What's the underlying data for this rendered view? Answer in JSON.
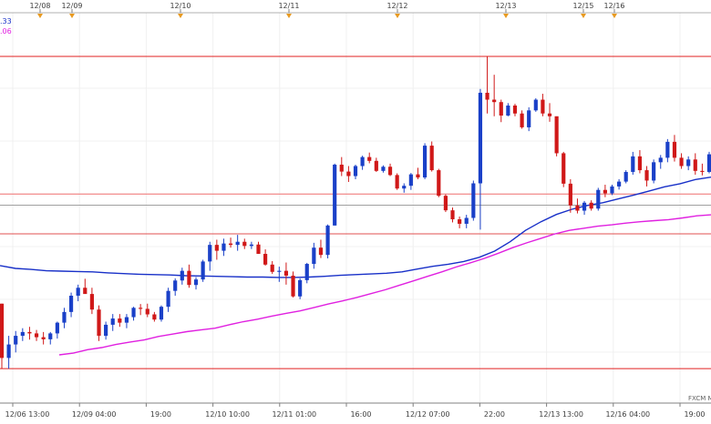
{
  "chart_data": {
    "type": "candlestick",
    "title": "",
    "xlabel": "",
    "ylabel": "",
    "ylim": [
      0,
      100
    ],
    "legend_entries": [
      ".33",
      ".06"
    ],
    "watermark": "FXCM M",
    "event_labels": [
      "12/08",
      "12/09",
      "12/10",
      "12/11",
      "12/12",
      "12/13",
      "12/15",
      "12/16"
    ],
    "x_tick_labels": [
      "12/06 13:00",
      "12/09 04:00",
      "19:00",
      "12/10 10:00",
      "12/11 01:00",
      "16:00",
      "12/12 07:00",
      "22:00",
      "12/13 13:00",
      "12/16 04:00",
      "19:00"
    ],
    "horizontal_levels": [
      {
        "value": 94.2,
        "color": "#e02020"
      },
      {
        "value": 54.4,
        "color": "#f07070"
      },
      {
        "value": 51.2,
        "color": "#a0a0a0"
      },
      {
        "value": 42.9,
        "color": "#e05050"
      },
      {
        "value": 3.9,
        "color": "#e02020"
      }
    ],
    "series": [
      {
        "type": "ohlc",
        "color_up": "#1a40c8",
        "color_down": "#d01818",
        "values": [
          [
            22.7,
            22.7,
            3.9,
            7.0
          ],
          [
            7.0,
            13.4,
            3.9,
            10.9
          ],
          [
            10.9,
            14.8,
            8.6,
            13.4
          ],
          [
            13.4,
            15.6,
            11.9,
            14.5
          ],
          [
            14.5,
            16.0,
            12.3,
            14.1
          ],
          [
            14.1,
            15.1,
            11.9,
            13.0
          ],
          [
            13.0,
            14.5,
            10.9,
            12.4
          ],
          [
            12.4,
            14.5,
            10.9,
            14.1
          ],
          [
            14.1,
            17.5,
            12.6,
            17.2
          ],
          [
            17.2,
            21.5,
            15.6,
            20.3
          ],
          [
            20.3,
            25.9,
            18.8,
            25.0
          ],
          [
            25.0,
            28.2,
            23.4,
            27.3
          ],
          [
            27.3,
            29.9,
            25.9,
            25.5
          ],
          [
            25.5,
            27.3,
            19.7,
            21.0
          ],
          [
            21.0,
            22.2,
            11.9,
            13.4
          ],
          [
            13.4,
            17.5,
            12.3,
            16.6
          ],
          [
            16.6,
            19.7,
            14.8,
            18.4
          ],
          [
            18.4,
            19.7,
            16.0,
            17.2
          ],
          [
            17.2,
            19.7,
            15.6,
            18.8
          ],
          [
            18.8,
            21.8,
            17.8,
            21.5
          ],
          [
            21.5,
            22.6,
            19.4,
            21.2
          ],
          [
            21.2,
            22.7,
            18.8,
            19.6
          ],
          [
            19.6,
            20.3,
            17.5,
            18.1
          ],
          [
            18.1,
            22.2,
            17.5,
            21.8
          ],
          [
            21.8,
            27.3,
            20.3,
            26.4
          ],
          [
            26.4,
            30.0,
            25.0,
            29.4
          ],
          [
            29.4,
            33.1,
            28.2,
            32.2
          ],
          [
            32.2,
            34.0,
            27.3,
            28.1
          ],
          [
            28.1,
            30.4,
            26.8,
            29.7
          ],
          [
            29.7,
            35.4,
            29.0,
            34.9
          ],
          [
            34.9,
            40.6,
            32.2,
            39.7
          ],
          [
            39.7,
            41.2,
            35.4,
            38.0
          ],
          [
            38.0,
            41.5,
            36.5,
            40.1
          ],
          [
            40.1,
            41.8,
            38.9,
            39.7
          ],
          [
            39.7,
            42.6,
            38.0,
            40.6
          ],
          [
            40.6,
            41.5,
            38.5,
            39.4
          ],
          [
            39.4,
            40.6,
            38.5,
            39.8
          ],
          [
            39.8,
            40.6,
            37.1,
            37.1
          ],
          [
            37.1,
            38.4,
            33.7,
            34.0
          ],
          [
            34.0,
            35.0,
            31.3,
            31.9
          ],
          [
            31.9,
            33.4,
            29.0,
            32.2
          ],
          [
            32.2,
            34.6,
            28.2,
            30.8
          ],
          [
            30.8,
            32.0,
            24.5,
            24.8
          ],
          [
            24.8,
            30.0,
            24.0,
            29.5
          ],
          [
            29.5,
            34.5,
            28.6,
            34.2
          ],
          [
            34.2,
            40.3,
            32.8,
            38.9
          ],
          [
            38.9,
            41.2,
            35.9,
            36.8
          ],
          [
            36.8,
            45.6,
            35.8,
            45.3
          ],
          [
            45.3,
            63.2,
            45.3,
            62.9
          ],
          [
            62.9,
            65.1,
            59.6,
            60.9
          ],
          [
            60.9,
            62.5,
            57.9,
            59.6
          ],
          [
            59.6,
            62.9,
            58.7,
            62.5
          ],
          [
            62.5,
            65.5,
            61.4,
            65.1
          ],
          [
            65.1,
            66.4,
            63.3,
            64.0
          ],
          [
            64.0,
            64.9,
            60.8,
            61.1
          ],
          [
            61.1,
            62.7,
            60.6,
            62.3
          ],
          [
            62.3,
            63.2,
            59.6,
            59.9
          ],
          [
            59.9,
            60.4,
            55.6,
            56.0
          ],
          [
            56.0,
            57.5,
            54.8,
            56.8
          ],
          [
            56.8,
            60.5,
            55.6,
            60.1
          ],
          [
            60.1,
            62.0,
            58.7,
            59.2
          ],
          [
            59.2,
            69.1,
            58.7,
            68.4
          ],
          [
            68.4,
            69.6,
            60.9,
            61.3
          ],
          [
            61.3,
            61.7,
            53.5,
            53.9
          ],
          [
            53.9,
            54.3,
            49.2,
            49.7
          ],
          [
            49.7,
            50.5,
            46.2,
            47.1
          ],
          [
            47.1,
            47.9,
            44.5,
            45.8
          ],
          [
            45.8,
            48.4,
            44.5,
            47.5
          ],
          [
            47.5,
            58.3,
            46.7,
            57.5
          ],
          [
            57.5,
            84.8,
            44.1,
            83.7
          ],
          [
            83.7,
            94.2,
            77.7,
            81.7
          ],
          [
            81.7,
            88.9,
            76.9,
            81.0
          ],
          [
            81.0,
            81.7,
            75.2,
            77.1
          ],
          [
            77.1,
            80.7,
            76.9,
            80.0
          ],
          [
            80.0,
            80.5,
            76.9,
            77.7
          ],
          [
            77.7,
            78.6,
            73.3,
            73.7
          ],
          [
            73.7,
            79.5,
            72.6,
            78.6
          ],
          [
            78.6,
            82.1,
            78.2,
            81.7
          ],
          [
            81.7,
            83.4,
            76.9,
            77.7
          ],
          [
            77.7,
            80.7,
            75.3,
            76.9
          ],
          [
            76.9,
            75.7,
            65.3,
            66.2
          ],
          [
            66.2,
            66.6,
            56.4,
            57.4
          ],
          [
            57.4,
            58.7,
            49.0,
            51.1
          ],
          [
            51.1,
            53.1,
            48.8,
            49.6
          ],
          [
            49.6,
            52.4,
            48.4,
            51.9
          ],
          [
            51.9,
            52.6,
            49.6,
            50.2
          ],
          [
            50.2,
            56.2,
            49.6,
            55.6
          ],
          [
            55.6,
            57.1,
            53.5,
            54.6
          ],
          [
            54.6,
            57.1,
            54.1,
            56.6
          ],
          [
            56.6,
            58.7,
            55.7,
            58.0
          ],
          [
            58.0,
            61.3,
            57.5,
            60.8
          ],
          [
            60.8,
            66.6,
            60.0,
            65.3
          ],
          [
            65.3,
            67.1,
            60.4,
            61.3
          ],
          [
            61.3,
            62.5,
            56.6,
            58.3
          ],
          [
            58.3,
            64.4,
            57.5,
            63.6
          ],
          [
            63.6,
            65.7,
            61.7,
            64.9
          ],
          [
            64.9,
            70.3,
            63.6,
            69.5
          ],
          [
            69.5,
            71.5,
            63.8,
            64.9
          ],
          [
            64.9,
            66.2,
            61.7,
            62.5
          ],
          [
            62.5,
            65.3,
            61.3,
            64.4
          ],
          [
            64.4,
            66.2,
            60.0,
            61.1
          ],
          [
            61.1,
            63.2,
            59.8,
            60.8
          ],
          [
            60.8,
            66.6,
            60.4,
            65.9
          ]
        ]
      },
      {
        "type": "line",
        "color": "#1830c8",
        "values": [
          33.7,
          32.9,
          32.6,
          32.2,
          32.1,
          32.0,
          31.9,
          31.6,
          31.4,
          31.2,
          31.1,
          31.0,
          30.8,
          30.7,
          30.6,
          30.5,
          30.4,
          30.4,
          30.3,
          30.3,
          30.4,
          30.6,
          30.9,
          31.1,
          31.3,
          31.5,
          31.9,
          32.7,
          33.5,
          34.1,
          34.9,
          36.1,
          37.9,
          40.6,
          43.9,
          46.4,
          48.5,
          50.0,
          51.1,
          51.9,
          53.0,
          54.1,
          55.3,
          56.5,
          57.4,
          58.6,
          59.3
        ]
      },
      {
        "type": "line",
        "color": "#e020e0",
        "values": [
          7.9,
          8.4,
          9.4,
          10.0,
          10.9,
          11.6,
          12.2,
          13.2,
          13.9,
          14.6,
          15.1,
          15.6,
          16.6,
          17.5,
          18.2,
          19.1,
          19.9,
          20.6,
          21.6,
          22.6,
          23.5,
          24.5,
          25.6,
          26.7,
          28.0,
          29.3,
          30.6,
          31.9,
          33.3,
          34.5,
          35.8,
          37.3,
          38.9,
          40.3,
          41.6,
          42.9,
          43.9,
          44.5,
          45.1,
          45.5,
          46.0,
          46.4,
          46.7,
          47.0,
          47.5,
          48.1,
          48.4
        ]
      }
    ]
  }
}
